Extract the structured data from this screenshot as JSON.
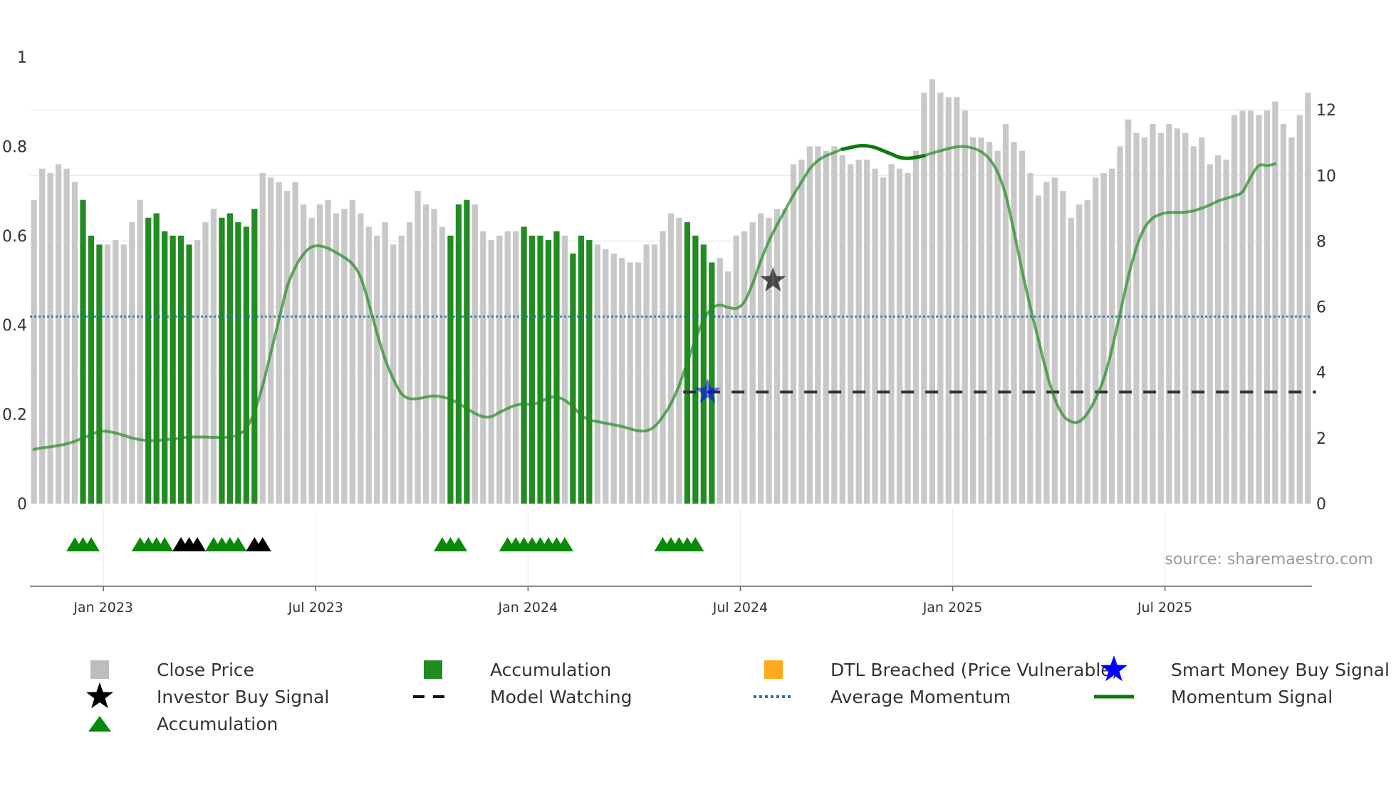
{
  "chart_data": {
    "type": "bar",
    "source": "source: sharemaestro.com",
    "left_axis": {
      "min": 0,
      "max": 1,
      "ticks": [
        "0",
        "0.2",
        "0.4",
        "0.6",
        "0.8",
        "1"
      ],
      "tick_values": [
        0,
        0.2,
        0.4,
        0.6,
        0.8,
        1.0
      ]
    },
    "right_axis": {
      "min": 0,
      "max": 13.5,
      "ticks": [
        "0",
        "2",
        "4",
        "6",
        "8",
        "10",
        "12"
      ],
      "tick_values": [
        0,
        2,
        4,
        6,
        8,
        10,
        12
      ]
    },
    "x_ticks": [
      {
        "label": "Jan 2023",
        "index": 8.5
      },
      {
        "label": "Jul 2023",
        "index": 34.5
      },
      {
        "label": "Jan 2024",
        "index": 60.5
      },
      {
        "label": "Jul 2024",
        "index": 86.5
      },
      {
        "label": "Jan 2025",
        "index": 112.5
      },
      {
        "label": "Jul 2025",
        "index": 138.5
      }
    ],
    "close_price": [
      0.68,
      0.75,
      0.74,
      0.76,
      0.75,
      0.72,
      0.68,
      0.6,
      0.58,
      0.58,
      0.59,
      0.58,
      0.63,
      0.68,
      0.64,
      0.65,
      0.61,
      0.6,
      0.6,
      0.58,
      0.59,
      0.63,
      0.66,
      0.64,
      0.65,
      0.63,
      0.62,
      0.66,
      0.74,
      0.73,
      0.72,
      0.7,
      0.72,
      0.67,
      0.64,
      0.67,
      0.68,
      0.65,
      0.66,
      0.68,
      0.65,
      0.62,
      0.6,
      0.63,
      0.58,
      0.6,
      0.63,
      0.7,
      0.67,
      0.66,
      0.62,
      0.6,
      0.67,
      0.68,
      0.67,
      0.61,
      0.59,
      0.6,
      0.61,
      0.61,
      0.62,
      0.6,
      0.6,
      0.59,
      0.61,
      0.6,
      0.56,
      0.6,
      0.59,
      0.58,
      0.57,
      0.56,
      0.55,
      0.54,
      0.54,
      0.58,
      0.58,
      0.61,
      0.65,
      0.64,
      0.63,
      0.6,
      0.58,
      0.54,
      0.55,
      0.52,
      0.6,
      0.61,
      0.63,
      0.65,
      0.64,
      0.66,
      0.66,
      0.76,
      0.77,
      0.8,
      0.8,
      0.79,
      0.8,
      0.78,
      0.76,
      0.77,
      0.77,
      0.75,
      0.73,
      0.76,
      0.75,
      0.74,
      0.79,
      0.92,
      0.95,
      0.92,
      0.91,
      0.91,
      0.88,
      0.82,
      0.82,
      0.81,
      0.79,
      0.85,
      0.81,
      0.79,
      0.74,
      0.69,
      0.72,
      0.73,
      0.7,
      0.64,
      0.67,
      0.68,
      0.73,
      0.74,
      0.75,
      0.8,
      0.86,
      0.83,
      0.82,
      0.85,
      0.83,
      0.85,
      0.84,
      0.83,
      0.8,
      0.82,
      0.76,
      0.78,
      0.77,
      0.87,
      0.88,
      0.88,
      0.87,
      0.88,
      0.9,
      0.85,
      0.82,
      0.87,
      0.92
    ],
    "accumulation_bar_indices": [
      6,
      7,
      8,
      14,
      15,
      16,
      17,
      18,
      19,
      23,
      24,
      25,
      26,
      27,
      51,
      52,
      53,
      60,
      61,
      62,
      63,
      64,
      66,
      67,
      68,
      80,
      81,
      82,
      83
    ],
    "momentum_signal": [
      1.65,
      1.7,
      1.73,
      1.77,
      1.82,
      1.9,
      2.0,
      2.1,
      2.2,
      2.2,
      2.15,
      2.08,
      2.0,
      1.95,
      1.92,
      1.92,
      1.95,
      1.97,
      2.0,
      2.03,
      2.03,
      2.03,
      2.02,
      2.02,
      2.03,
      2.1,
      2.3,
      2.8,
      3.6,
      4.6,
      5.6,
      6.6,
      7.2,
      7.6,
      7.82,
      7.85,
      7.78,
      7.65,
      7.5,
      7.3,
      6.9,
      6.1,
      5.2,
      4.4,
      3.8,
      3.35,
      3.2,
      3.2,
      3.25,
      3.28,
      3.25,
      3.18,
      3.05,
      2.9,
      2.75,
      2.65,
      2.65,
      2.78,
      2.9,
      3.0,
      3.03,
      3.03,
      3.1,
      3.22,
      3.25,
      3.15,
      2.95,
      2.7,
      2.55,
      2.5,
      2.45,
      2.4,
      2.35,
      2.28,
      2.22,
      2.22,
      2.35,
      2.65,
      3.05,
      3.6,
      4.3,
      5.0,
      5.6,
      5.95,
      6.05,
      5.98,
      5.95,
      6.15,
      6.7,
      7.4,
      8.0,
      8.5,
      8.95,
      9.4,
      9.8,
      10.2,
      10.45,
      10.6,
      10.7,
      10.8,
      10.85,
      10.9,
      10.9,
      10.85,
      10.75,
      10.65,
      10.55,
      10.52,
      10.55,
      10.6,
      10.68,
      10.75,
      10.82,
      10.87,
      10.88,
      10.83,
      10.72,
      10.5,
      10.1,
      9.4,
      8.3,
      7.1,
      6.0,
      5.0,
      4.0,
      3.2,
      2.7,
      2.5,
      2.5,
      2.75,
      3.2,
      3.8,
      4.7,
      5.8,
      6.9,
      7.8,
      8.4,
      8.7,
      8.82,
      8.87,
      8.87,
      8.88,
      8.92,
      9.0,
      9.1,
      9.22,
      9.3,
      9.38,
      9.5,
      9.95,
      10.3,
      10.3,
      10.35
    ],
    "momentum_bold_range": [
      99,
      109
    ],
    "average_momentum": 5.7,
    "model_watching": {
      "start_index": 79.5,
      "end_index": 157,
      "value": 3.4
    },
    "smart_money_buy_signal": {
      "index": 82.5,
      "value": 3.4
    },
    "investor_buy_signal": {
      "index": 90.5,
      "value": 6.8
    },
    "accumulation_markers": [
      5,
      6,
      7,
      13,
      14,
      15,
      16,
      22,
      23,
      24,
      25,
      50,
      51,
      52,
      58,
      59,
      60,
      61,
      62,
      63,
      64,
      65,
      77,
      78,
      79,
      80,
      81
    ],
    "investor_markers": [
      18,
      19,
      20,
      27,
      28
    ],
    "legend": [
      {
        "label": "Close Price",
        "symbol": "gray-square-icon"
      },
      {
        "label": "Accumulation",
        "symbol": "green-square-icon"
      },
      {
        "label": "DTL Breached (Price Vulnerable)",
        "symbol": "orange-square-icon"
      },
      {
        "label": "Smart Money Buy Signal",
        "symbol": "blue-star-icon"
      },
      {
        "label": "Investor Buy Signal",
        "symbol": "black-star-icon"
      },
      {
        "label": "Model Watching",
        "symbol": "black-dashed-line-icon"
      },
      {
        "label": "Average Momentum",
        "symbol": "blue-dotted-line-icon"
      },
      {
        "label": "Momentum Signal",
        "symbol": "green-line-icon"
      },
      {
        "label": "Accumulation",
        "symbol": "green-triangle-icon"
      }
    ],
    "colors": {
      "close_price": "#c8c8c8",
      "accumulation": "#228b22",
      "dtl": "#ffa500",
      "smart_money": "#0000ff",
      "investor": "#000000",
      "model_watching": "#333333",
      "average_momentum": "#1f77b4",
      "momentum": "#228b22",
      "momentum_bold": "#0a7a0a",
      "grid": "#e8e8e8",
      "axis_text": "#333333",
      "source_text": "#999999"
    }
  }
}
